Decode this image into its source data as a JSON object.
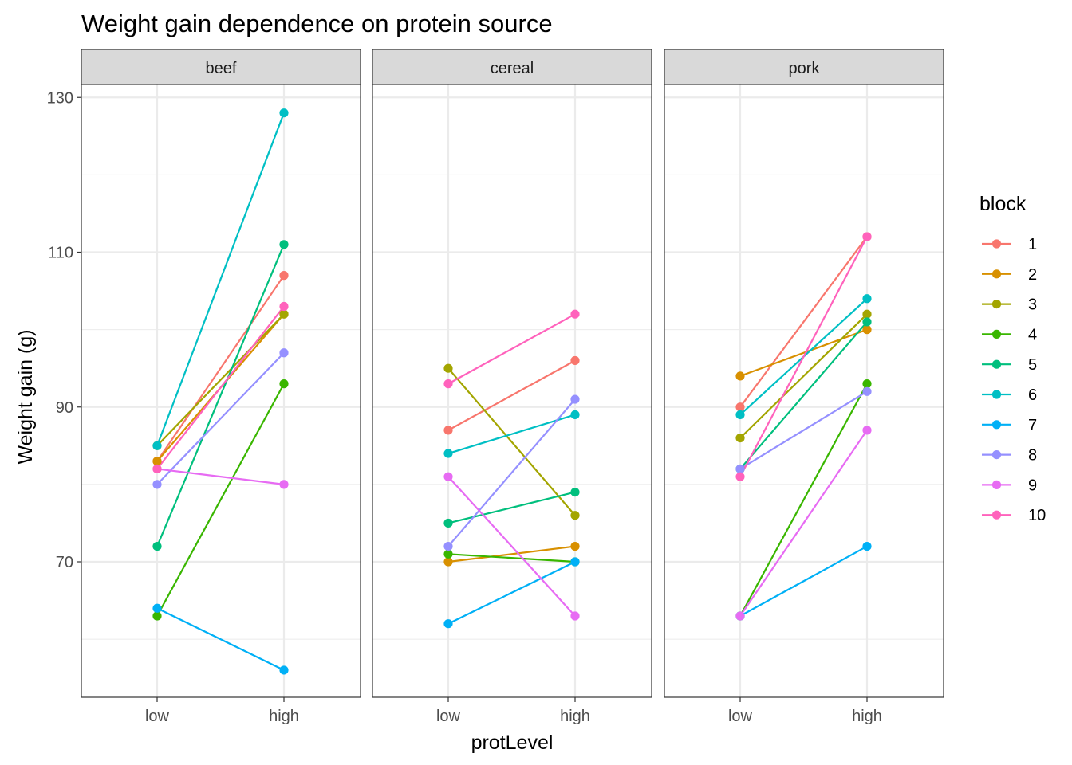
{
  "chart_data": {
    "type": "line",
    "title": "Weight gain dependence on protein source",
    "xlabel": "protLevel",
    "ylabel": "Weight gain (g)",
    "x_categories": [
      "low",
      "high"
    ],
    "y_ticks": [
      70,
      90,
      110,
      130
    ],
    "ylim": [
      52.5,
      131.5
    ],
    "grid": true,
    "legend": {
      "title": "block",
      "position": "right"
    },
    "panels": [
      {
        "name": "beef",
        "series": [
          {
            "name": "1",
            "values": [
              83,
              107
            ]
          },
          {
            "name": "2",
            "values": [
              83,
              102
            ]
          },
          {
            "name": "3",
            "values": [
              85,
              102
            ]
          },
          {
            "name": "4",
            "values": [
              63,
              93
            ]
          },
          {
            "name": "5",
            "values": [
              72,
              111
            ]
          },
          {
            "name": "6",
            "values": [
              85,
              128
            ]
          },
          {
            "name": "7",
            "values": [
              64,
              56
            ]
          },
          {
            "name": "8",
            "values": [
              80,
              97
            ]
          },
          {
            "name": "9",
            "values": [
              82,
              80
            ]
          },
          {
            "name": "10",
            "values": [
              82,
              103
            ]
          }
        ]
      },
      {
        "name": "cereal",
        "series": [
          {
            "name": "1",
            "values": [
              87,
              96
            ]
          },
          {
            "name": "2",
            "values": [
              70,
              72
            ]
          },
          {
            "name": "3",
            "values": [
              95,
              76
            ]
          },
          {
            "name": "4",
            "values": [
              71,
              70
            ]
          },
          {
            "name": "5",
            "values": [
              75,
              79
            ]
          },
          {
            "name": "6",
            "values": [
              84,
              89
            ]
          },
          {
            "name": "7",
            "values": [
              62,
              70
            ]
          },
          {
            "name": "8",
            "values": [
              72,
              91
            ]
          },
          {
            "name": "9",
            "values": [
              81,
              63
            ]
          },
          {
            "name": "10",
            "values": [
              93,
              102
            ]
          }
        ]
      },
      {
        "name": "pork",
        "series": [
          {
            "name": "1",
            "values": [
              90,
              112
            ]
          },
          {
            "name": "2",
            "values": [
              94,
              100
            ]
          },
          {
            "name": "3",
            "values": [
              86,
              102
            ]
          },
          {
            "name": "4",
            "values": [
              63,
              93
            ]
          },
          {
            "name": "5",
            "values": [
              82,
              101
            ]
          },
          {
            "name": "6",
            "values": [
              89,
              104
            ]
          },
          {
            "name": "7",
            "values": [
              63,
              72
            ]
          },
          {
            "name": "8",
            "values": [
              82,
              92
            ]
          },
          {
            "name": "9",
            "values": [
              63,
              87
            ]
          },
          {
            "name": "10",
            "values": [
              81,
              112
            ]
          }
        ]
      }
    ],
    "colors": {
      "1": "#F8766D",
      "2": "#D89000",
      "3": "#A3A500",
      "4": "#39B600",
      "5": "#00BF7D",
      "6": "#00BFC4",
      "7": "#00B0F6",
      "8": "#9590FF",
      "9": "#E76BF3",
      "10": "#FF62BC"
    }
  }
}
